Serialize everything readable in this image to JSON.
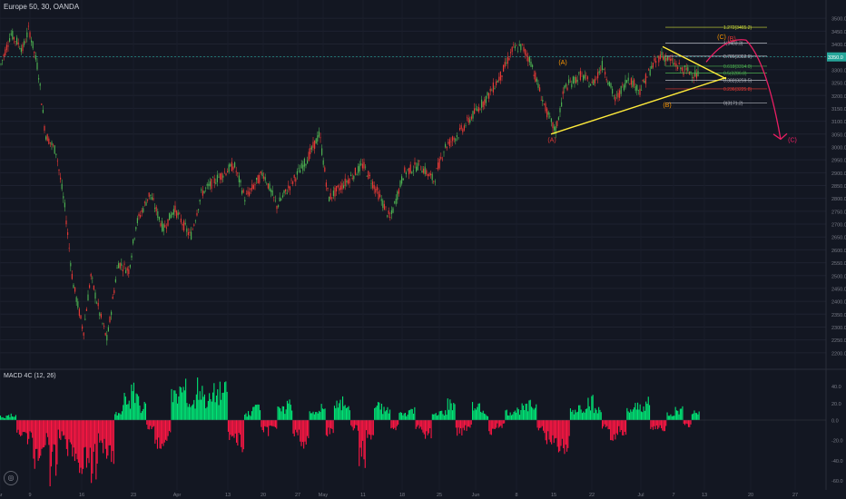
{
  "header": {
    "title": "Europe 50, 30, OANDA"
  },
  "macd": {
    "title": "MACD 4C (12, 26)"
  },
  "chart_data": [
    {
      "type": "line",
      "name": "price",
      "title": "Europe 50, 30, OANDA",
      "xlabel": "",
      "ylabel": "",
      "ylim": [
        2150,
        3550
      ],
      "y_ticks": [
        2200,
        2250,
        2300,
        2350,
        2400,
        2450,
        2500,
        2550,
        2600,
        2650,
        2700,
        2750,
        2800,
        2850,
        2900,
        2950,
        3000,
        3050,
        3100,
        3150,
        3200,
        3250,
        3300,
        3350,
        3400,
        3450,
        3500
      ],
      "x_ticks": [
        "ar",
        "9",
        "16",
        "23",
        "Apr",
        "13",
        "20",
        "27",
        "May",
        "11",
        "18",
        "25",
        "Jun",
        "8",
        "15",
        "22",
        "Jul",
        "7",
        "13",
        "20",
        "27"
      ],
      "current_price": "3350.0",
      "price_path": [
        {
          "x": 0,
          "y": 3310
        },
        {
          "x": 12,
          "y": 3440
        },
        {
          "x": 25,
          "y": 3380
        },
        {
          "x": 32,
          "y": 3460
        },
        {
          "x": 42,
          "y": 3300
        },
        {
          "x": 50,
          "y": 3050
        },
        {
          "x": 62,
          "y": 2980
        },
        {
          "x": 72,
          "y": 2750
        },
        {
          "x": 80,
          "y": 2480
        },
        {
          "x": 92,
          "y": 2280
        },
        {
          "x": 100,
          "y": 2500
        },
        {
          "x": 110,
          "y": 2350
        },
        {
          "x": 118,
          "y": 2250
        },
        {
          "x": 130,
          "y": 2550
        },
        {
          "x": 142,
          "y": 2520
        },
        {
          "x": 150,
          "y": 2700
        },
        {
          "x": 165,
          "y": 2820
        },
        {
          "x": 180,
          "y": 2680
        },
        {
          "x": 192,
          "y": 2760
        },
        {
          "x": 210,
          "y": 2650
        },
        {
          "x": 222,
          "y": 2820
        },
        {
          "x": 240,
          "y": 2880
        },
        {
          "x": 258,
          "y": 2930
        },
        {
          "x": 270,
          "y": 2800
        },
        {
          "x": 290,
          "y": 2900
        },
        {
          "x": 305,
          "y": 2770
        },
        {
          "x": 325,
          "y": 2880
        },
        {
          "x": 338,
          "y": 2950
        },
        {
          "x": 352,
          "y": 3050
        },
        {
          "x": 362,
          "y": 2800
        },
        {
          "x": 380,
          "y": 2860
        },
        {
          "x": 400,
          "y": 2930
        },
        {
          "x": 415,
          "y": 2830
        },
        {
          "x": 430,
          "y": 2720
        },
        {
          "x": 445,
          "y": 2900
        },
        {
          "x": 462,
          "y": 2930
        },
        {
          "x": 478,
          "y": 2870
        },
        {
          "x": 490,
          "y": 3000
        },
        {
          "x": 505,
          "y": 3050
        },
        {
          "x": 520,
          "y": 3120
        },
        {
          "x": 538,
          "y": 3200
        },
        {
          "x": 552,
          "y": 3280
        },
        {
          "x": 565,
          "y": 3380
        },
        {
          "x": 575,
          "y": 3390
        },
        {
          "x": 585,
          "y": 3330
        },
        {
          "x": 596,
          "y": 3200
        },
        {
          "x": 605,
          "y": 3110
        },
        {
          "x": 612,
          "y": 3060
        },
        {
          "x": 622,
          "y": 3230
        },
        {
          "x": 640,
          "y": 3280
        },
        {
          "x": 652,
          "y": 3240
        },
        {
          "x": 664,
          "y": 3320
        },
        {
          "x": 678,
          "y": 3180
        },
        {
          "x": 692,
          "y": 3270
        },
        {
          "x": 705,
          "y": 3220
        },
        {
          "x": 718,
          "y": 3310
        },
        {
          "x": 728,
          "y": 3360
        },
        {
          "x": 740,
          "y": 3330
        },
        {
          "x": 752,
          "y": 3300
        },
        {
          "x": 762,
          "y": 3290
        },
        {
          "x": 770,
          "y": 3275
        }
      ],
      "fibonacci": [
        {
          "label": "1.272(3465.2)",
          "value": 3465.2,
          "color": "#cddc39"
        },
        {
          "label": "1(3403.3)",
          "value": 3403.3,
          "color": "#b2b5be"
        },
        {
          "label": "0.786(3352.9)",
          "value": 3352.9,
          "color": "#b2b5be"
        },
        {
          "label": "0.618(3314.0)",
          "value": 3314.0,
          "color": "#4caf50"
        },
        {
          "label": "0.5(3286.8)",
          "value": 3286.8,
          "color": "#4caf50"
        },
        {
          "label": "0.382(3259.5)",
          "value": 3259.5,
          "color": "#b2b5be"
        },
        {
          "label": "0.236(3225.8)",
          "value": 3225.8,
          "color": "#e53935"
        },
        {
          "label": "0(3171.2)",
          "value": 3171.2,
          "color": "#b2b5be"
        }
      ],
      "wave_labels": [
        {
          "text": "(A)",
          "x": 620,
          "y": 3320,
          "color": "#ff9800"
        },
        {
          "text": "(A)",
          "x": 608,
          "y": 3020,
          "color": "#e53935"
        },
        {
          "text": "(B)",
          "x": 735,
          "y": 3155,
          "color": "#ff9800"
        },
        {
          "text": "(C)",
          "x": 795,
          "y": 3420,
          "color": "#ff9800"
        },
        {
          "text": "(B)",
          "x": 806,
          "y": 3413,
          "color": "#e53935"
        },
        {
          "text": "(C)",
          "x": 873,
          "y": 3020,
          "color": "#e91e63"
        }
      ]
    },
    {
      "type": "bar",
      "name": "macd-histogram",
      "title": "MACD 4C (12, 26)",
      "ylim": [
        -65,
        48
      ],
      "y_ticks": [
        "40.0",
        "20.0",
        "0.0",
        "-20.0",
        "-40.0",
        "-60.0"
      ],
      "values": [
        5,
        8,
        -15,
        -25,
        -45,
        -30,
        -60,
        -20,
        -35,
        -55,
        -50,
        -58,
        -30,
        -40,
        10,
        30,
        40,
        20,
        -10,
        -35,
        -25,
        35,
        45,
        25,
        48,
        30,
        40,
        42,
        -20,
        -30,
        10,
        20,
        -15,
        -10,
        15,
        25,
        -20,
        -30,
        10,
        18,
        -15,
        22,
        28,
        -10,
        -45,
        -20,
        20,
        15,
        -10,
        10,
        15,
        -12,
        -18,
        8,
        12,
        25,
        -15,
        -10,
        20,
        10,
        -15,
        -8,
        12,
        15,
        18,
        22,
        -15,
        -25,
        -30,
        -35,
        15,
        20,
        28,
        15,
        -10,
        -20,
        -15,
        15,
        20,
        25,
        -10,
        -12,
        10,
        15,
        -8,
        12
      ]
    }
  ]
}
